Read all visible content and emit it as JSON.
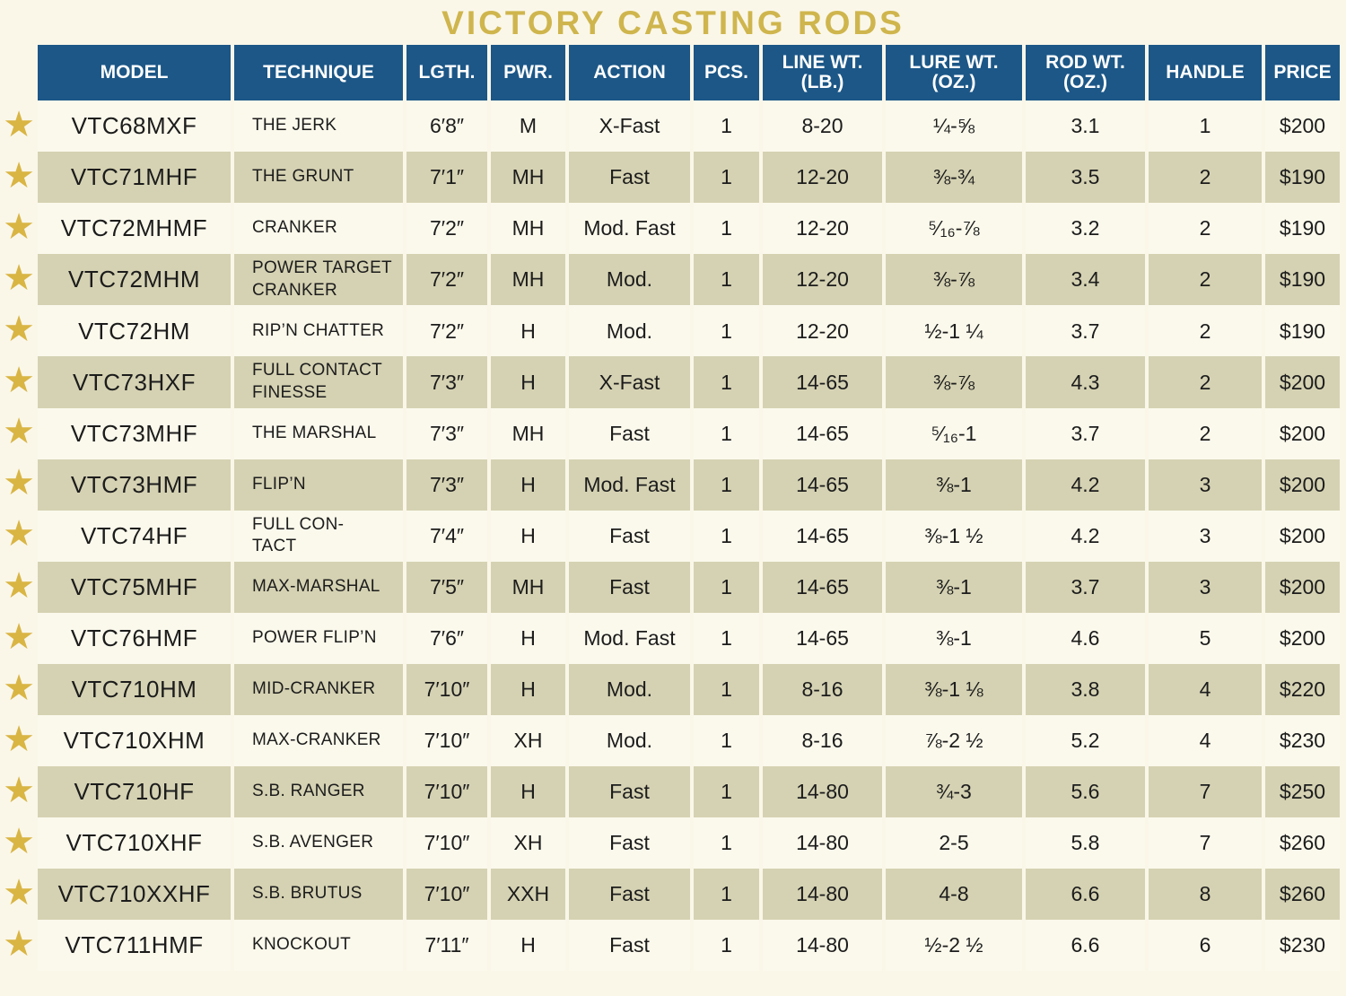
{
  "title": "VICTORY CASTING RODS",
  "colors": {
    "page_background": "#FAF7E9",
    "header_blue": "#1C5787",
    "row_cream": "#FBF9EC",
    "row_tan": "#D5D2B3",
    "title_gold": "#CFB54D",
    "star_gold": "#D9B544",
    "text": "#1C1C1C"
  },
  "star_icon": "★",
  "table": {
    "columns": [
      {
        "label": "MODEL",
        "sub": ""
      },
      {
        "label": "TECHNIQUE",
        "sub": ""
      },
      {
        "label": "LGTH.",
        "sub": ""
      },
      {
        "label": "PWR.",
        "sub": ""
      },
      {
        "label": "ACTION",
        "sub": ""
      },
      {
        "label": "PCS.",
        "sub": ""
      },
      {
        "label": "LINE WT.",
        "sub": "(LB.)"
      },
      {
        "label": "LURE WT.",
        "sub": "(OZ.)"
      },
      {
        "label": "ROD WT.",
        "sub": "(OZ.)"
      },
      {
        "label": "HANDLE",
        "sub": ""
      },
      {
        "label": "PRICE",
        "sub": ""
      }
    ],
    "rows": [
      {
        "model": "VTC68MXF",
        "technique": "THE JERK",
        "length": "6′8″",
        "power": "M",
        "action": "X-Fast",
        "pcs": "1",
        "line_wt": "8-20",
        "lure_wt": "¼-⅝",
        "rod_wt": "3.1",
        "handle": "1",
        "price": "$200"
      },
      {
        "model": "VTC71MHF",
        "technique": "THE GRUNT",
        "length": "7′1″",
        "power": "MH",
        "action": "Fast",
        "pcs": "1",
        "line_wt": "12-20",
        "lure_wt": "⅜-¾",
        "rod_wt": "3.5",
        "handle": "2",
        "price": "$190"
      },
      {
        "model": "VTC72MHMF",
        "technique": "CRANKER",
        "length": "7′2″",
        "power": "MH",
        "action": "Mod. Fast",
        "pcs": "1",
        "line_wt": "12-20",
        "lure_wt": "⁵⁄₁₆-⅞",
        "rod_wt": "3.2",
        "handle": "2",
        "price": "$190"
      },
      {
        "model": "VTC72MHM",
        "technique": "POWER TARGET\nCRANKER",
        "length": "7′2″",
        "power": "MH",
        "action": "Mod.",
        "pcs": "1",
        "line_wt": "12-20",
        "lure_wt": "⅜-⅞",
        "rod_wt": "3.4",
        "handle": "2",
        "price": "$190"
      },
      {
        "model": "VTC72HM",
        "technique": "RIP’N CHATTER",
        "length": "7′2″",
        "power": "H",
        "action": "Mod.",
        "pcs": "1",
        "line_wt": "12-20",
        "lure_wt": "½-1 ¼",
        "rod_wt": "3.7",
        "handle": "2",
        "price": "$190"
      },
      {
        "model": "VTC73HXF",
        "technique": "FULL CONTACT\nFINESSE",
        "length": "7′3″",
        "power": "H",
        "action": "X-Fast",
        "pcs": "1",
        "line_wt": "14-65",
        "lure_wt": "⅜-⅞",
        "rod_wt": "4.3",
        "handle": "2",
        "price": "$200"
      },
      {
        "model": "VTC73MHF",
        "technique": "THE MARSHAL",
        "length": "7′3″",
        "power": "MH",
        "action": "Fast",
        "pcs": "1",
        "line_wt": "14-65",
        "lure_wt": "⁵⁄₁₆-1",
        "rod_wt": "3.7",
        "handle": "2",
        "price": "$200"
      },
      {
        "model": "VTC73HMF",
        "technique": "FLIP’N",
        "length": "7′3″",
        "power": "H",
        "action": "Mod. Fast",
        "pcs": "1",
        "line_wt": "14-65",
        "lure_wt": "⅜-1",
        "rod_wt": "4.2",
        "handle": "3",
        "price": "$200"
      },
      {
        "model": "VTC74HF",
        "technique": "FULL CON-\nTACT",
        "length": "7′4″",
        "power": "H",
        "action": "Fast",
        "pcs": "1",
        "line_wt": "14-65",
        "lure_wt": "⅜-1 ½",
        "rod_wt": "4.2",
        "handle": "3",
        "price": "$200"
      },
      {
        "model": "VTC75MHF",
        "technique": "MAX-MARSHAL",
        "length": "7′5″",
        "power": "MH",
        "action": "Fast",
        "pcs": "1",
        "line_wt": "14-65",
        "lure_wt": "⅜-1",
        "rod_wt": "3.7",
        "handle": "3",
        "price": "$200"
      },
      {
        "model": "VTC76HMF",
        "technique": "POWER FLIP’N",
        "length": "7′6″",
        "power": "H",
        "action": "Mod. Fast",
        "pcs": "1",
        "line_wt": "14-65",
        "lure_wt": "⅜-1",
        "rod_wt": "4.6",
        "handle": "5",
        "price": "$200"
      },
      {
        "model": "VTC710HM",
        "technique": "MID-CRANKER",
        "length": "7′10″",
        "power": "H",
        "action": "Mod.",
        "pcs": "1",
        "line_wt": "8-16",
        "lure_wt": "⅜-1 ⅛",
        "rod_wt": "3.8",
        "handle": "4",
        "price": "$220"
      },
      {
        "model": "VTC710XHM",
        "technique": "MAX-CRANKER",
        "length": "7′10″",
        "power": "XH",
        "action": "Mod.",
        "pcs": "1",
        "line_wt": "8-16",
        "lure_wt": "⅞-2 ½",
        "rod_wt": "5.2",
        "handle": "4",
        "price": "$230"
      },
      {
        "model": "VTC710HF",
        "technique": "S.B. RANGER",
        "length": "7′10″",
        "power": "H",
        "action": "Fast",
        "pcs": "1",
        "line_wt": "14-80",
        "lure_wt": "¾-3",
        "rod_wt": "5.6",
        "handle": "7",
        "price": "$250"
      },
      {
        "model": "VTC710XHF",
        "technique": "S.B. AVENGER",
        "length": "7′10″",
        "power": "XH",
        "action": "Fast",
        "pcs": "1",
        "line_wt": "14-80",
        "lure_wt": "2-5",
        "rod_wt": "5.8",
        "handle": "7",
        "price": "$260"
      },
      {
        "model": "VTC710XXHF",
        "technique": "S.B. BRUTUS",
        "length": "7′10″",
        "power": "XXH",
        "action": "Fast",
        "pcs": "1",
        "line_wt": "14-80",
        "lure_wt": "4-8",
        "rod_wt": "6.6",
        "handle": "8",
        "price": "$260"
      },
      {
        "model": "VTC711HMF",
        "technique": "KNOCKOUT",
        "length": "7′11″",
        "power": "H",
        "action": "Fast",
        "pcs": "1",
        "line_wt": "14-80",
        "lure_wt": "½-2 ½",
        "rod_wt": "6.6",
        "handle": "6",
        "price": "$230"
      }
    ]
  }
}
